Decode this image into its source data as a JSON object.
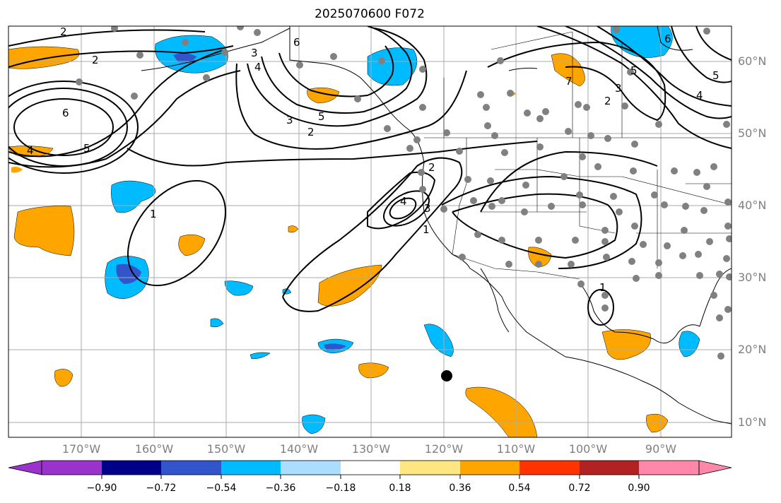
{
  "title": "2025070600 F072",
  "lat_labels": [
    "60°N",
    "50°N",
    "40°N",
    "30°N",
    "20°N",
    "10°N"
  ],
  "lon_labels": [
    "170°W",
    "160°W",
    "150°W",
    "140°W",
    "130°W",
    "120°W",
    "110°W",
    "100°W",
    "90°W"
  ],
  "colorbar": {
    "ticks": [
      "−0.90",
      "−0.72",
      "−0.54",
      "−0.36",
      "−0.18",
      "0.18",
      "0.36",
      "0.54",
      "0.72",
      "0.90"
    ],
    "colors": [
      "#9933cc",
      "#000088",
      "#3355cc",
      "#00bbff",
      "#aaddff",
      "#ffffff",
      "#ffe680",
      "#ffa500",
      "#ff3300",
      "#b22222",
      "#ff88aa"
    ]
  },
  "contour_labels": [
    "2",
    "6",
    "5",
    "4",
    "3",
    "2",
    "1",
    "2",
    "3",
    "4",
    "1",
    "2",
    "3",
    "4",
    "5",
    "6",
    "7",
    "3",
    "2",
    "1",
    "5",
    "4",
    "5",
    "6"
  ],
  "colors": {
    "orange": "#ffa500",
    "blue": "#00bbff",
    "dark_blue": "#3355cc",
    "grid": "#aaaaaa",
    "station": "#808080"
  }
}
